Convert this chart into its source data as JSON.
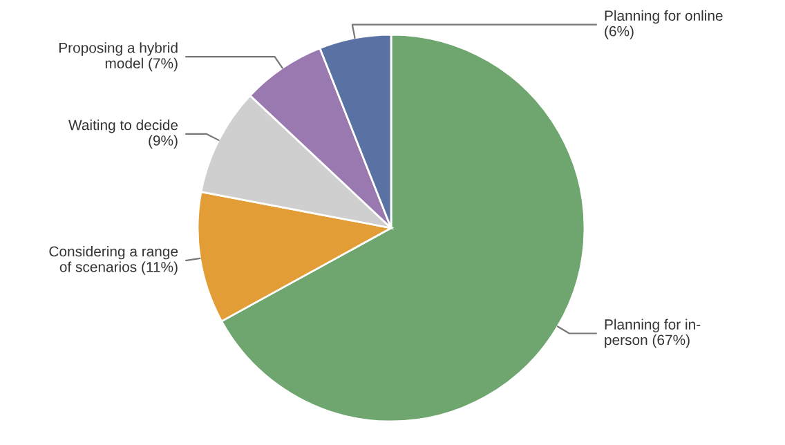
{
  "chart_data": {
    "type": "pie",
    "categories": [
      "Planning for in-person",
      "Considering a range of scenarios",
      "Waiting to decide",
      "Proposing a hybrid model",
      "Planning for online"
    ],
    "values": [
      67,
      11,
      9,
      7,
      6
    ],
    "value_labels": [
      "(67%)",
      "(11%)",
      "(9%)",
      "(7%)",
      "(6%)"
    ],
    "colors": [
      "#6fa56e",
      "#e39d36",
      "#cfcfcf",
      "#9a78b0",
      "#5a72a3"
    ],
    "legend": false
  }
}
